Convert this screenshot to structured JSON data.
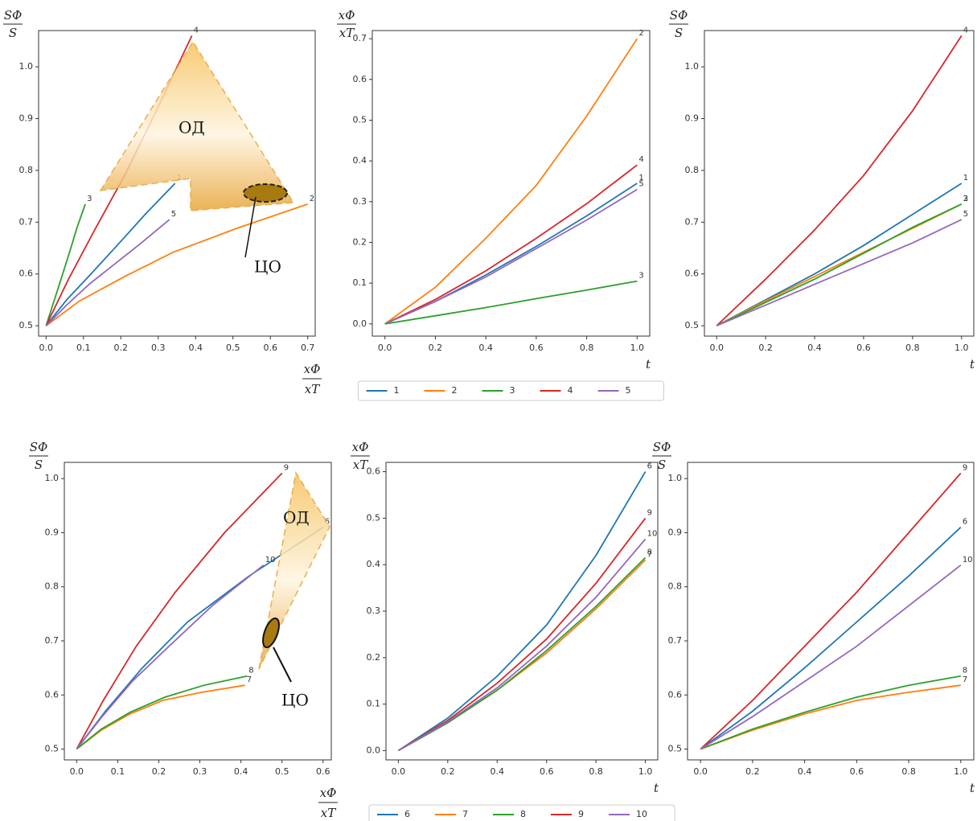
{
  "chart_data": [
    {
      "type": "line",
      "ylabel": {
        "top": "SΦ",
        "bottom": "S"
      },
      "xlabel": {
        "top": "xΦ",
        "bottom": "xT"
      },
      "xlim": [
        -0.02,
        0.72
      ],
      "ylim": [
        0.48,
        1.07
      ],
      "xticks": [
        {
          "value": 0,
          "label": "0.0"
        },
        0.1,
        0.2,
        0.3,
        0.4,
        0.5,
        0.6,
        0.7
      ],
      "yticks": [
        0.5,
        0.6,
        0.7,
        0.8,
        0.9,
        {
          "value": 1,
          "label": "1.0"
        }
      ],
      "annotations": [
        "ОД",
        "ЦО"
      ],
      "series": [
        {
          "name": "1",
          "color": "#1f77b4",
          "x": [
            0,
            0.055,
            0.12,
            0.19,
            0.265,
            0.345
          ],
          "values": [
            0.5,
            0.55,
            0.6,
            0.655,
            0.715,
            0.775
          ]
        },
        {
          "name": "2",
          "color": "#ff7f0e",
          "x": [
            0,
            0.09,
            0.21,
            0.34,
            0.51,
            0.7
          ],
          "values": [
            0.5,
            0.548,
            0.595,
            0.642,
            0.688,
            0.735
          ]
        },
        {
          "name": "3",
          "color": "#2ca02c",
          "x": [
            0,
            0.02,
            0.04,
            0.062,
            0.083,
            0.105
          ],
          "values": [
            0.5,
            0.545,
            0.59,
            0.64,
            0.69,
            0.735
          ]
        },
        {
          "name": "4",
          "color": "#d62728",
          "x": [
            0,
            0.06,
            0.13,
            0.21,
            0.295,
            0.39
          ],
          "values": [
            0.5,
            0.59,
            0.685,
            0.79,
            0.915,
            1.06
          ]
        },
        {
          "name": "5",
          "color": "#9467bd",
          "x": [
            0,
            0.055,
            0.115,
            0.185,
            0.255,
            0.33
          ],
          "values": [
            0.5,
            0.54,
            0.58,
            0.62,
            0.66,
            0.705
          ]
        }
      ]
    },
    {
      "type": "line",
      "ylabel": {
        "top": "xΦ",
        "bottom": "xT"
      },
      "xlabel": {
        "top": "t"
      },
      "legend": "below",
      "x": [
        0,
        0.2,
        0.4,
        0.6,
        0.8,
        1.0
      ],
      "xlim": [
        -0.05,
        1.05
      ],
      "ylim": [
        -0.03,
        0.72
      ],
      "xticks": [
        {
          "value": 0,
          "label": "0.0"
        },
        0.2,
        0.4,
        0.6,
        0.8,
        {
          "value": 1,
          "label": "1.0"
        }
      ],
      "yticks": [
        {
          "value": 0,
          "label": "0.0"
        },
        0.1,
        0.2,
        0.3,
        0.4,
        0.5,
        0.6,
        0.7
      ],
      "series": [
        {
          "name": "1",
          "color": "#1f77b4",
          "values": [
            0,
            0.055,
            0.12,
            0.19,
            0.265,
            0.345
          ]
        },
        {
          "name": "2",
          "color": "#ff7f0e",
          "values": [
            0,
            0.09,
            0.21,
            0.34,
            0.51,
            0.7
          ]
        },
        {
          "name": "3",
          "color": "#2ca02c",
          "values": [
            0,
            0.02,
            0.04,
            0.062,
            0.083,
            0.105
          ]
        },
        {
          "name": "4",
          "color": "#d62728",
          "values": [
            0,
            0.06,
            0.13,
            0.21,
            0.295,
            0.39
          ]
        },
        {
          "name": "5",
          "color": "#9467bd",
          "values": [
            0,
            0.055,
            0.115,
            0.185,
            0.255,
            0.33
          ]
        }
      ]
    },
    {
      "type": "line",
      "ylabel": {
        "top": "SΦ",
        "bottom": "S"
      },
      "xlabel": {
        "top": "t"
      },
      "x": [
        0,
        0.2,
        0.4,
        0.6,
        0.8,
        1.0
      ],
      "xlim": [
        -0.05,
        1.05
      ],
      "ylim": [
        0.48,
        1.07
      ],
      "xticks": [
        {
          "value": 0,
          "label": "0.0"
        },
        0.2,
        0.4,
        0.6,
        0.8,
        {
          "value": 1,
          "label": "1.0"
        }
      ],
      "yticks": [
        0.5,
        0.6,
        0.7,
        0.8,
        0.9,
        {
          "value": 1,
          "label": "1.0"
        }
      ],
      "series": [
        {
          "name": "1",
          "color": "#1f77b4",
          "values": [
            0.5,
            0.55,
            0.6,
            0.655,
            0.715,
            0.775
          ]
        },
        {
          "name": "2",
          "color": "#ff7f0e",
          "values": [
            0.5,
            0.548,
            0.595,
            0.642,
            0.688,
            0.735
          ]
        },
        {
          "name": "3",
          "color": "#2ca02c",
          "values": [
            0.5,
            0.545,
            0.59,
            0.64,
            0.69,
            0.735
          ]
        },
        {
          "name": "4",
          "color": "#d62728",
          "values": [
            0.5,
            0.59,
            0.685,
            0.79,
            0.915,
            1.06
          ]
        },
        {
          "name": "5",
          "color": "#9467bd",
          "values": [
            0.5,
            0.54,
            0.58,
            0.62,
            0.66,
            0.705
          ]
        }
      ]
    },
    {
      "type": "line",
      "ylabel": {
        "top": "SΦ",
        "bottom": "S"
      },
      "xlabel": {
        "top": "xΦ",
        "bottom": "xT"
      },
      "xlim": [
        -0.03,
        0.62
      ],
      "ylim": [
        0.48,
        1.03
      ],
      "xticks": [
        {
          "value": 0,
          "label": "0.0"
        },
        0.1,
        0.2,
        0.3,
        0.4,
        0.5,
        0.6
      ],
      "yticks": [
        0.5,
        0.6,
        0.7,
        0.8,
        0.9,
        {
          "value": 1,
          "label": "1.0"
        }
      ],
      "annotations": [
        "ОД",
        "ЦО"
      ],
      "series": [
        {
          "name": "6",
          "color": "#1f77b4",
          "x": [
            0,
            0.07,
            0.16,
            0.27,
            0.42,
            0.6
          ],
          "values": [
            0.5,
            0.57,
            0.65,
            0.735,
            0.82,
            0.91
          ]
        },
        {
          "name": "7",
          "color": "#ff7f0e",
          "x": [
            0,
            0.06,
            0.13,
            0.21,
            0.305,
            0.41
          ],
          "values": [
            0.5,
            0.535,
            0.565,
            0.59,
            0.605,
            0.618
          ]
        },
        {
          "name": "8",
          "color": "#2ca02c",
          "x": [
            0,
            0.06,
            0.13,
            0.215,
            0.31,
            0.415
          ],
          "values": [
            0.5,
            0.537,
            0.568,
            0.596,
            0.618,
            0.635
          ]
        },
        {
          "name": "9",
          "color": "#d62728",
          "x": [
            0,
            0.065,
            0.145,
            0.24,
            0.36,
            0.5
          ],
          "values": [
            0.5,
            0.59,
            0.69,
            0.79,
            0.9,
            1.01
          ]
        },
        {
          "name": "10",
          "color": "#9467bd",
          "x": [
            0,
            0.062,
            0.135,
            0.225,
            0.33,
            0.455
          ],
          "values": [
            0.5,
            0.56,
            0.625,
            0.69,
            0.765,
            0.84
          ]
        }
      ]
    },
    {
      "type": "line",
      "ylabel": {
        "top": "xΦ",
        "bottom": "xT"
      },
      "xlabel": {
        "top": "t"
      },
      "legend": "below",
      "x": [
        0,
        0.2,
        0.4,
        0.6,
        0.8,
        1.0
      ],
      "xlim": [
        -0.05,
        1.05
      ],
      "ylim": [
        -0.02,
        0.62
      ],
      "xticks": [
        {
          "value": 0,
          "label": "0.0"
        },
        0.2,
        0.4,
        0.6,
        0.8,
        {
          "value": 1,
          "label": "1.0"
        }
      ],
      "yticks": [
        {
          "value": 0,
          "label": "0.0"
        },
        0.1,
        0.2,
        0.3,
        0.4,
        0.5,
        0.6
      ],
      "series": [
        {
          "name": "6",
          "color": "#1f77b4",
          "values": [
            0,
            0.07,
            0.16,
            0.27,
            0.42,
            0.6
          ]
        },
        {
          "name": "7",
          "color": "#ff7f0e",
          "values": [
            0,
            0.06,
            0.13,
            0.21,
            0.305,
            0.41
          ]
        },
        {
          "name": "8",
          "color": "#2ca02c",
          "values": [
            0,
            0.06,
            0.13,
            0.215,
            0.31,
            0.415
          ]
        },
        {
          "name": "9",
          "color": "#d62728",
          "values": [
            0,
            0.065,
            0.145,
            0.24,
            0.36,
            0.5
          ]
        },
        {
          "name": "10",
          "color": "#9467bd",
          "values": [
            0,
            0.062,
            0.135,
            0.225,
            0.33,
            0.455
          ]
        }
      ]
    },
    {
      "type": "line",
      "ylabel": {
        "top": "SΦ",
        "bottom": "S"
      },
      "xlabel": {
        "top": "t"
      },
      "x": [
        0,
        0.2,
        0.4,
        0.6,
        0.8,
        1.0
      ],
      "xlim": [
        -0.05,
        1.05
      ],
      "ylim": [
        0.48,
        1.03
      ],
      "xticks": [
        {
          "value": 0,
          "label": "0.0"
        },
        0.2,
        0.4,
        0.6,
        0.8,
        {
          "value": 1,
          "label": "1.0"
        }
      ],
      "yticks": [
        0.5,
        0.6,
        0.7,
        0.8,
        0.9,
        {
          "value": 1,
          "label": "1.0"
        }
      ],
      "series": [
        {
          "name": "6",
          "color": "#1f77b4",
          "values": [
            0.5,
            0.57,
            0.65,
            0.735,
            0.82,
            0.91
          ]
        },
        {
          "name": "7",
          "color": "#ff7f0e",
          "values": [
            0.5,
            0.535,
            0.565,
            0.59,
            0.605,
            0.618
          ]
        },
        {
          "name": "8",
          "color": "#2ca02c",
          "values": [
            0.5,
            0.537,
            0.568,
            0.596,
            0.618,
            0.635
          ]
        },
        {
          "name": "9",
          "color": "#d62728",
          "values": [
            0.5,
            0.59,
            0.69,
            0.79,
            0.9,
            1.01
          ]
        },
        {
          "name": "10",
          "color": "#9467bd",
          "values": [
            0.5,
            0.56,
            0.625,
            0.69,
            0.765,
            0.84
          ]
        }
      ]
    }
  ]
}
